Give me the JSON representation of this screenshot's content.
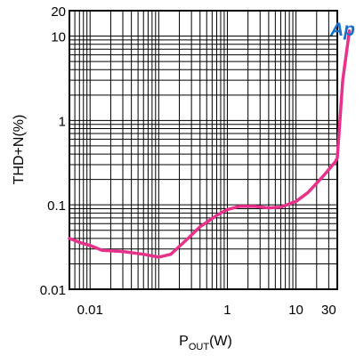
{
  "chart_data": {
    "type": "line",
    "xscale": "log",
    "yscale": "log",
    "xlim": [
      0.005,
      40
    ],
    "ylim": [
      0.01,
      20
    ],
    "xticks": [
      {
        "value": 0.01,
        "label": "0.01"
      },
      {
        "value": 1,
        "label": "1"
      },
      {
        "value": 10,
        "label": "10"
      },
      {
        "value": 30,
        "label": "30"
      }
    ],
    "yticks": [
      {
        "value": 0.01,
        "label": "0.01"
      },
      {
        "value": 0.1,
        "label": "0.1"
      },
      {
        "value": 1,
        "label": "1"
      },
      {
        "value": 10,
        "label": "10"
      },
      {
        "value": 20,
        "label": "20"
      }
    ],
    "xlabel": {
      "main": "P",
      "sub": "OUT",
      "suffix": "(W)"
    },
    "ylabel": "THD+N(%)",
    "grid": true,
    "logo": "Ap",
    "series": [
      {
        "color": "#e8318a",
        "points": [
          [
            0.005,
            0.04
          ],
          [
            0.007,
            0.036
          ],
          [
            0.01,
            0.033
          ],
          [
            0.015,
            0.029
          ],
          [
            0.03,
            0.028
          ],
          [
            0.06,
            0.026
          ],
          [
            0.1,
            0.024
          ],
          [
            0.15,
            0.026
          ],
          [
            0.25,
            0.038
          ],
          [
            0.4,
            0.055
          ],
          [
            0.7,
            0.075
          ],
          [
            1.0,
            0.088
          ],
          [
            1.5,
            0.096
          ],
          [
            2.5,
            0.096
          ],
          [
            4,
            0.092
          ],
          [
            6,
            0.094
          ],
          [
            10,
            0.11
          ],
          [
            15,
            0.14
          ],
          [
            25,
            0.22
          ],
          [
            37,
            0.32
          ],
          [
            40,
            0.36
          ],
          [
            48,
            3.0
          ],
          [
            60,
            11.5
          ]
        ]
      }
    ]
  }
}
